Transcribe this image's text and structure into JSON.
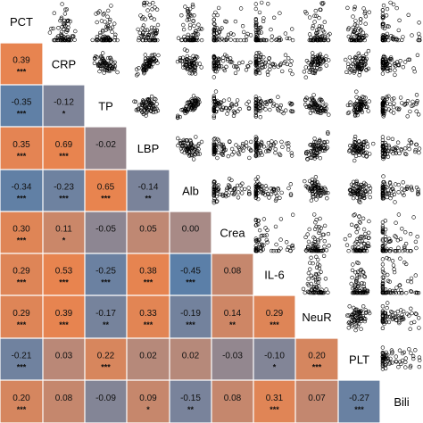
{
  "chart_data": {
    "type": "scatter-matrix",
    "variables": [
      "PCT",
      "CRP",
      "TP",
      "LBP",
      "Alb",
      "Crea",
      "IL-6",
      "NeuR",
      "PLT",
      "Bili"
    ],
    "correlations": [
      {
        "row": 1,
        "col": 0,
        "r": "0.39",
        "value": 0.39,
        "stars": "***"
      },
      {
        "row": 2,
        "col": 0,
        "r": "-0.35",
        "value": -0.35,
        "stars": "***"
      },
      {
        "row": 2,
        "col": 1,
        "r": "-0.12",
        "value": -0.12,
        "stars": "*"
      },
      {
        "row": 3,
        "col": 0,
        "r": "0.35",
        "value": 0.35,
        "stars": "***"
      },
      {
        "row": 3,
        "col": 1,
        "r": "0.69",
        "value": 0.69,
        "stars": "***"
      },
      {
        "row": 3,
        "col": 2,
        "r": "-0.02",
        "value": -0.02,
        "stars": ""
      },
      {
        "row": 4,
        "col": 0,
        "r": "-0.34",
        "value": -0.34,
        "stars": "***"
      },
      {
        "row": 4,
        "col": 1,
        "r": "-0.23",
        "value": -0.23,
        "stars": "***"
      },
      {
        "row": 4,
        "col": 2,
        "r": "0.65",
        "value": 0.65,
        "stars": "***"
      },
      {
        "row": 4,
        "col": 3,
        "r": "-0.14",
        "value": -0.14,
        "stars": "**"
      },
      {
        "row": 5,
        "col": 0,
        "r": "0.30",
        "value": 0.3,
        "stars": "***"
      },
      {
        "row": 5,
        "col": 1,
        "r": "0.11",
        "value": 0.11,
        "stars": "*"
      },
      {
        "row": 5,
        "col": 2,
        "r": "-0.05",
        "value": -0.05,
        "stars": ""
      },
      {
        "row": 5,
        "col": 3,
        "r": "0.05",
        "value": 0.05,
        "stars": ""
      },
      {
        "row": 5,
        "col": 4,
        "r": "0.00",
        "value": 0.0,
        "stars": ""
      },
      {
        "row": 6,
        "col": 0,
        "r": "0.29",
        "value": 0.29,
        "stars": "***"
      },
      {
        "row": 6,
        "col": 1,
        "r": "0.53",
        "value": 0.53,
        "stars": "***"
      },
      {
        "row": 6,
        "col": 2,
        "r": "-0.25",
        "value": -0.25,
        "stars": "***"
      },
      {
        "row": 6,
        "col": 3,
        "r": "0.38",
        "value": 0.38,
        "stars": "***"
      },
      {
        "row": 6,
        "col": 4,
        "r": "-0.45",
        "value": -0.45,
        "stars": "***"
      },
      {
        "row": 6,
        "col": 5,
        "r": "0.08",
        "value": 0.08,
        "stars": ""
      },
      {
        "row": 7,
        "col": 0,
        "r": "0.29",
        "value": 0.29,
        "stars": "***"
      },
      {
        "row": 7,
        "col": 1,
        "r": "0.39",
        "value": 0.39,
        "stars": "***"
      },
      {
        "row": 7,
        "col": 2,
        "r": "-0.17",
        "value": -0.17,
        "stars": "**"
      },
      {
        "row": 7,
        "col": 3,
        "r": "0.33",
        "value": 0.33,
        "stars": "***"
      },
      {
        "row": 7,
        "col": 4,
        "r": "-0.19",
        "value": -0.19,
        "stars": "***"
      },
      {
        "row": 7,
        "col": 5,
        "r": "0.14",
        "value": 0.14,
        "stars": "**"
      },
      {
        "row": 7,
        "col": 6,
        "r": "0.29",
        "value": 0.29,
        "stars": "***"
      },
      {
        "row": 8,
        "col": 0,
        "r": "-0.21",
        "value": -0.21,
        "stars": "***"
      },
      {
        "row": 8,
        "col": 1,
        "r": "0.03",
        "value": 0.03,
        "stars": ""
      },
      {
        "row": 8,
        "col": 2,
        "r": "0.22",
        "value": 0.22,
        "stars": "***"
      },
      {
        "row": 8,
        "col": 3,
        "r": "0.02",
        "value": 0.02,
        "stars": ""
      },
      {
        "row": 8,
        "col": 4,
        "r": "0.02",
        "value": 0.02,
        "stars": ""
      },
      {
        "row": 8,
        "col": 5,
        "r": "-0.03",
        "value": -0.03,
        "stars": ""
      },
      {
        "row": 8,
        "col": 6,
        "r": "-0.10",
        "value": -0.1,
        "stars": "*"
      },
      {
        "row": 8,
        "col": 7,
        "r": "0.20",
        "value": 0.2,
        "stars": "***"
      },
      {
        "row": 9,
        "col": 0,
        "r": "0.20",
        "value": 0.2,
        "stars": "***"
      },
      {
        "row": 9,
        "col": 1,
        "r": "0.08",
        "value": 0.08,
        "stars": ""
      },
      {
        "row": 9,
        "col": 2,
        "r": "-0.09",
        "value": -0.09,
        "stars": ""
      },
      {
        "row": 9,
        "col": 3,
        "r": "0.09",
        "value": 0.09,
        "stars": "*"
      },
      {
        "row": 9,
        "col": 4,
        "r": "-0.15",
        "value": -0.15,
        "stars": "**"
      },
      {
        "row": 9,
        "col": 5,
        "r": "0.08",
        "value": 0.08,
        "stars": ""
      },
      {
        "row": 9,
        "col": 6,
        "r": "0.31",
        "value": 0.31,
        "stars": "***"
      },
      {
        "row": 9,
        "col": 7,
        "r": "0.07",
        "value": 0.07,
        "stars": ""
      },
      {
        "row": 9,
        "col": 8,
        "r": "-0.27",
        "value": -0.27,
        "stars": "***"
      }
    ],
    "upper_panels": "pairwise scatter plots (open circles)",
    "color_scale": {
      "positive": "#e8844f",
      "negative": "#5b7fa8",
      "neutral": "#a88a86"
    },
    "title": "",
    "legend": "none"
  }
}
